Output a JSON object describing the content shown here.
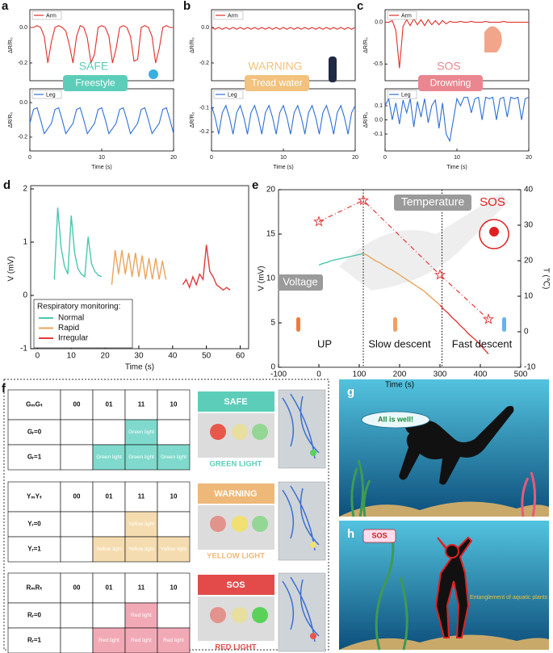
{
  "chart_data": [
    {
      "type": "line",
      "panel": "a",
      "badge": "SAFE",
      "activity": "Freestyle",
      "badge_color": "#5ccdb9",
      "xlabel": "Time (s)",
      "xlim": [
        0,
        20
      ],
      "xticks": [
        0,
        10,
        20
      ],
      "x": [
        0,
        0.5,
        1,
        1.5,
        2,
        2.5,
        3,
        3.5,
        4,
        4.5,
        5,
        5.5,
        6,
        6.5,
        7,
        7.5,
        8,
        8.5,
        9,
        9.5,
        10,
        10.5,
        11,
        11.5,
        12,
        12.5,
        13,
        13.5,
        14,
        14.5,
        15,
        15.5,
        16,
        16.5,
        17,
        17.5,
        18,
        18.5,
        19,
        19.5,
        20
      ],
      "subplots": [
        {
          "ylabel": "ΔR/R₀",
          "ylim": [
            -0.3,
            0.1
          ],
          "yticks": [
            {
              "value": 0,
              "label": "0.0"
            },
            -0.2
          ],
          "series": [
            {
              "name": "Arm",
              "color": "#e0302a",
              "values": [
                0.0,
                0.0,
                0.01,
                0.0,
                -0.05,
                -0.2,
                -0.08,
                0.0,
                0.01,
                0.0,
                -0.02,
                -0.1,
                -0.2,
                -0.05,
                0.01,
                0.0,
                -0.06,
                -0.2,
                -0.15,
                0.0,
                0.01,
                0.0,
                -0.05,
                -0.2,
                -0.12,
                0.0,
                0.01,
                0.0,
                -0.05,
                -0.19,
                -0.18,
                0.0,
                0.01,
                0.0,
                -0.05,
                -0.2,
                -0.12,
                0.0,
                0.01,
                0.0,
                0.0
              ]
            }
          ]
        },
        {
          "ylabel": "ΔR/R₀",
          "ylim": [
            -0.28,
            0.08
          ],
          "yticks": [
            {
              "value": 0,
              "label": "0.0"
            },
            -0.2
          ],
          "series": [
            {
              "name": "Leg",
              "color": "#2f6fd6",
              "values": [
                -0.12,
                -0.04,
                -0.03,
                -0.1,
                -0.18,
                -0.15,
                -0.12,
                -0.04,
                -0.03,
                -0.1,
                -0.18,
                -0.15,
                -0.12,
                -0.04,
                -0.03,
                -0.1,
                -0.18,
                -0.15,
                -0.12,
                -0.04,
                -0.03,
                -0.1,
                -0.18,
                -0.15,
                -0.12,
                -0.04,
                -0.03,
                -0.1,
                -0.18,
                -0.15,
                -0.12,
                -0.04,
                -0.03,
                -0.1,
                -0.18,
                -0.15,
                -0.12,
                -0.04,
                -0.03,
                -0.1,
                -0.18
              ]
            }
          ]
        }
      ]
    },
    {
      "type": "line",
      "panel": "b",
      "badge": "WARNING",
      "activity": "Tread water",
      "badge_color": "#f2c27e",
      "xlabel": "Time (s)",
      "xlim": [
        0,
        20
      ],
      "xticks": [
        0,
        10,
        20
      ],
      "x": [
        0,
        0.5,
        1,
        1.5,
        2,
        2.5,
        3,
        3.5,
        4,
        4.5,
        5,
        5.5,
        6,
        6.5,
        7,
        7.5,
        8,
        8.5,
        9,
        9.5,
        10,
        10.5,
        11,
        11.5,
        12,
        12.5,
        13,
        13.5,
        14,
        14.5,
        15,
        15.5,
        16,
        16.5,
        17,
        17.5,
        18,
        18.5,
        19,
        19.5,
        20
      ],
      "subplots": [
        {
          "ylabel": "ΔR/R₀",
          "ylim": [
            -0.3,
            0.1
          ],
          "yticks": [
            {
              "value": 0,
              "label": "0.0"
            },
            -0.2
          ],
          "series": [
            {
              "name": "Arm",
              "color": "#e0302a",
              "values": [
                0,
                -0.01,
                0,
                -0.01,
                0,
                -0.01,
                0,
                -0.01,
                0,
                -0.01,
                0,
                -0.01,
                0,
                -0.01,
                0,
                -0.01,
                0,
                -0.01,
                0,
                -0.01,
                0,
                -0.01,
                0,
                -0.01,
                0,
                -0.01,
                0,
                -0.01,
                0,
                -0.01,
                0,
                -0.01,
                0,
                -0.01,
                0,
                -0.01,
                0,
                -0.01,
                0,
                -0.01,
                0
              ]
            }
          ]
        },
        {
          "ylabel": "ΔR/R₀",
          "ylim": [
            -0.28,
            -0.02
          ],
          "yticks": [
            -0.1,
            -0.2
          ],
          "series": [
            {
              "name": "Leg",
              "color": "#2f6fd6",
              "values": [
                -0.09,
                -0.14,
                -0.21,
                -0.12,
                -0.09,
                -0.14,
                -0.21,
                -0.12,
                -0.09,
                -0.14,
                -0.21,
                -0.12,
                -0.09,
                -0.14,
                -0.21,
                -0.12,
                -0.09,
                -0.14,
                -0.21,
                -0.12,
                -0.09,
                -0.14,
                -0.21,
                -0.12,
                -0.09,
                -0.14,
                -0.21,
                -0.12,
                -0.09,
                -0.14,
                -0.21,
                -0.12,
                -0.09,
                -0.14,
                -0.21,
                -0.12,
                -0.09,
                -0.14,
                -0.21,
                -0.12,
                -0.09
              ]
            }
          ]
        }
      ]
    },
    {
      "type": "line",
      "panel": "c",
      "badge": "SOS",
      "activity": "Drowning",
      "badge_color": "#e9868f",
      "xlabel": "Time (s)",
      "xlim": [
        0,
        20
      ],
      "xticks": [
        0,
        10,
        20
      ],
      "x": [
        0,
        0.5,
        1,
        1.5,
        2,
        2.5,
        3,
        3.5,
        4,
        4.5,
        5,
        5.5,
        6,
        6.5,
        7,
        7.5,
        8,
        8.5,
        9,
        9.5,
        10,
        10.5,
        11,
        11.5,
        12,
        12.5,
        13,
        13.5,
        14,
        14.5,
        15,
        15.5,
        16,
        16.5,
        17,
        17.5,
        18,
        18.5,
        19,
        19.5,
        20
      ],
      "subplots": [
        {
          "ylabel": "ΔR/R₀",
          "ylim": [
            -0.7,
            0.15
          ],
          "yticks": [
            {
              "value": 0,
              "label": "0.0"
            },
            -0.5
          ],
          "series": [
            {
              "name": "Arm",
              "color": "#e0302a",
              "values": [
                0.0,
                0.0,
                0.02,
                -0.1,
                -0.55,
                -0.05,
                0.03,
                -0.04,
                0.04,
                -0.03,
                0.03,
                -0.04,
                0.03,
                -0.03,
                0.02,
                -0.03,
                0.02,
                -0.02,
                0.01,
                0.0,
                0.0,
                0.01,
                0.0,
                0.0,
                0.01,
                0.0,
                0.0,
                0.0,
                0.01,
                0.0,
                0.0,
                0.0,
                0.0,
                0.01,
                0.0,
                0.0,
                0.0,
                0.0,
                0.0,
                0.0,
                0.0
              ]
            }
          ]
        },
        {
          "ylabel": "ΔR/R₀",
          "ylim": [
            -0.22,
            0.22
          ],
          "yticks": [
            0.1,
            {
              "value": 0,
              "label": "0.0"
            },
            -0.1
          ],
          "series": [
            {
              "name": "Leg",
              "color": "#2f6fd6",
              "values": [
                0.1,
                0.15,
                0.0,
                0.12,
                -0.03,
                0.14,
                0.05,
                0.15,
                -0.05,
                0.13,
                0.02,
                0.15,
                -0.02,
                0.1,
                0.14,
                -0.06,
                0.12,
                -0.1,
                -0.15,
                0.0,
                0.15,
                0.1,
                0.16,
                0.16,
                0.05,
                0.15,
                0.16,
                0.0,
                0.16,
                0.15,
                0.16,
                0.0,
                0.15,
                0.16,
                0.02,
                0.16,
                0.15,
                0.16,
                0.0,
                0.15,
                0.16
              ]
            }
          ]
        }
      ]
    },
    {
      "type": "line",
      "panel": "d",
      "xlabel": "Time (s)",
      "ylabel": "V (mV)",
      "xlim": [
        -2,
        62.5
      ],
      "xticks": [
        0,
        10,
        20,
        30,
        40,
        50,
        60
      ],
      "ylim": [
        -1,
        2
      ],
      "yticks": [
        -1,
        0,
        1,
        2
      ],
      "legend_title": "Respiratory monitoring:",
      "series": [
        {
          "name": "Normal",
          "color": "#4cc6b0",
          "x": [
            5,
            6,
            7,
            8,
            9,
            10,
            11,
            12,
            13,
            14,
            15,
            16,
            17,
            18,
            19
          ],
          "values": [
            0.3,
            1.65,
            0.9,
            0.55,
            0.4,
            1.5,
            0.8,
            0.5,
            0.4,
            0.35,
            1.1,
            0.6,
            0.45,
            0.38,
            0.35
          ]
        },
        {
          "name": "Rapid",
          "color": "#eaa45c",
          "x": [
            22,
            23,
            24,
            25,
            26,
            27,
            28,
            29,
            30,
            31,
            32,
            33,
            34,
            35,
            36,
            37,
            38
          ],
          "values": [
            0.2,
            0.85,
            0.4,
            0.85,
            0.4,
            0.8,
            0.35,
            0.8,
            0.35,
            0.75,
            0.3,
            0.7,
            0.3,
            0.7,
            0.3,
            0.65,
            0.3
          ]
        },
        {
          "name": "Irregular",
          "color": "#e03a3a",
          "x": [
            43,
            44,
            45,
            46,
            47,
            48,
            49,
            50,
            51,
            52,
            53,
            54,
            55,
            56,
            57
          ],
          "values": [
            0.2,
            0.3,
            0.15,
            0.35,
            0.2,
            0.4,
            0.3,
            0.95,
            0.45,
            0.35,
            0.2,
            0.15,
            0.1,
            0.15,
            0.1
          ]
        }
      ]
    },
    {
      "type": "dual_axis_line",
      "panel": "e",
      "xlabel": "Time (s)",
      "ylabel": "V (mV)",
      "y2label": "T (℃)",
      "xlim": [
        -100,
        500
      ],
      "xticks": [
        -100,
        0,
        100,
        200,
        300,
        400,
        500
      ],
      "ylim": [
        0,
        20
      ],
      "yticks": [
        0,
        5,
        10,
        15,
        20
      ],
      "y2lim": [
        -10,
        40
      ],
      "y2ticks": [
        -10,
        0,
        10,
        20,
        30,
        40
      ],
      "phase_boundaries": [
        110,
        305
      ],
      "annotations": [
        "Temperature",
        "SOS",
        "Voltage",
        "UP",
        "Slow descent",
        "Fast descent"
      ],
      "series": [
        {
          "color": "#4cc6b0",
          "x": [
            0,
            10,
            20,
            30,
            40,
            50,
            60,
            70,
            80,
            90,
            100,
            110
          ],
          "values": [
            11.5,
            11.7,
            11.8,
            12.0,
            12.1,
            12.2,
            12.3,
            12.4,
            12.5,
            12.6,
            12.7,
            12.8
          ]
        },
        {
          "color": "#eaa45c",
          "x": [
            110,
            120,
            130,
            140,
            150,
            160,
            170,
            180,
            190,
            200,
            210,
            220,
            230,
            240,
            250,
            260,
            270,
            280,
            290,
            300
          ],
          "values": [
            12.8,
            12.6,
            12.3,
            12.0,
            11.8,
            11.5,
            11.2,
            11.0,
            10.7,
            10.4,
            10.1,
            9.8,
            9.5,
            9.2,
            8.9,
            8.6,
            8.2,
            7.8,
            7.4,
            7.0
          ]
        },
        {
          "color": "#e03a3a",
          "x": [
            300,
            310,
            320,
            330,
            340,
            350,
            360,
            370,
            380,
            390,
            400,
            410,
            420
          ],
          "values": [
            7.0,
            6.5,
            6.1,
            5.6,
            5.2,
            4.7,
            4.3,
            3.8,
            3.4,
            3.0,
            2.5,
            2.0,
            1.5
          ]
        },
        {
          "color": "#e03a3a",
          "axis": "y2",
          "x": [
            0,
            110,
            300,
            420
          ],
          "values": [
            31,
            37,
            16,
            3.5
          ]
        }
      ]
    }
  ],
  "panel_f": {
    "panel": "f",
    "tables": [
      {
        "header": [
          "GₘGₜ",
          "00",
          "01",
          "11",
          "10"
        ],
        "rows": [
          [
            "Gᵣ=0",
            null,
            null,
            "Green light",
            null
          ],
          [
            "Gᵣ=1",
            null,
            "Green light",
            "Green light",
            "Green light"
          ]
        ],
        "title": "SAFE",
        "caption": "GREEN LIGHT",
        "color": "#5ccdb9",
        "cell_color": "#7fd9cc"
      },
      {
        "header": [
          "YₘYₜ",
          "00",
          "01",
          "11",
          "10"
        ],
        "rows": [
          [
            "Yᵣ=0",
            null,
            null,
            "Yellow light",
            null
          ],
          [
            "Yᵣ=1",
            null,
            "Yellow light",
            "Yellow light",
            "Yellow light"
          ]
        ],
        "title": "WARNING",
        "caption": "YELLOW LIGHT",
        "color": "#eeb879",
        "cell_color": "#f5dcb0"
      },
      {
        "header": [
          "RₘRₜ",
          "00",
          "01",
          "11",
          "10"
        ],
        "rows": [
          [
            "Rᵣ=0",
            null,
            null,
            "Red light",
            null
          ],
          [
            "Rᵣ=1",
            null,
            "Red light",
            "Red light",
            "Red light"
          ]
        ],
        "title": "SOS",
        "caption": "RED LIGHT",
        "color": "#e34b4b",
        "cell_color": "#f2a9b6"
      }
    ]
  },
  "panel_g": {
    "panel": "g",
    "bubble": "All is well!"
  },
  "panel_h": {
    "panel": "h",
    "bubble": "SOS",
    "note": "Entanglement of aquatic plants"
  }
}
